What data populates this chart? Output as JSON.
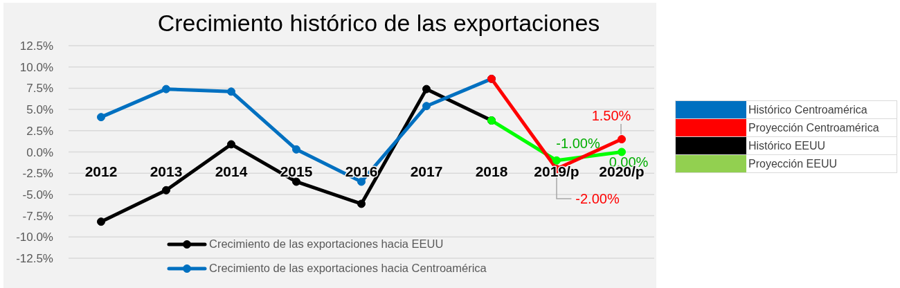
{
  "chart_data": [
    {
      "type": "line",
      "title": "Crecimiento histórico de las exportaciones",
      "categories": [
        "2012",
        "2013",
        "2014",
        "2015",
        "2016",
        "2017",
        "2018",
        "2019/p",
        "2020/p"
      ],
      "series": [
        {
          "name": "Crecimiento de las exportaciones hacia EEUU",
          "color": "#000000",
          "values": [
            -8.2,
            -4.5,
            0.9,
            -3.5,
            -6.1,
            7.4,
            3.7,
            null,
            null
          ]
        },
        {
          "name": "Crecimiento de las exportaciones hacia Centroamérica",
          "color": "#0070c0",
          "values": [
            4.1,
            7.4,
            7.1,
            0.3,
            -3.5,
            5.4,
            8.6,
            null,
            null
          ]
        },
        {
          "color": "#00ff00",
          "values": [
            null,
            null,
            null,
            null,
            null,
            null,
            3.7,
            -1.0,
            0.0
          ],
          "value_labels": [
            null,
            null,
            null,
            null,
            null,
            null,
            null,
            "-1.00%",
            "0.00%"
          ]
        },
        {
          "color": "#ff0000",
          "values": [
            null,
            null,
            null,
            null,
            null,
            null,
            8.6,
            -2.0,
            1.5
          ],
          "value_labels": [
            null,
            null,
            null,
            null,
            null,
            null,
            null,
            "-2.00%",
            "1.50%"
          ]
        }
      ],
      "ylim": [
        -12.5,
        12.5
      ],
      "yticks": [
        {
          "value": -12.5,
          "label": "-12.5%"
        },
        {
          "value": -10,
          "label": "-10.0%"
        },
        {
          "value": -7.5,
          "label": "-7.5%"
        },
        {
          "value": -5,
          "label": "-5.0%"
        },
        {
          "value": -2.5,
          "label": "-2.5%"
        },
        {
          "value": 0,
          "label": "0.0%"
        },
        {
          "value": 2.5,
          "label": "2.5%"
        },
        {
          "value": 5,
          "label": "5.0%"
        },
        {
          "value": 7.5,
          "label": "7.5%"
        },
        {
          "value": 10,
          "label": "10.0%"
        },
        {
          "value": 12.5,
          "label": "12.5%"
        }
      ],
      "grid": "y",
      "legend": "bottom",
      "marker": "circle",
      "line_style": "solid"
    },
    {
      "type": "other",
      "categories": [
        "Histórico Centroamérica",
        "Proyección Centroamérica",
        "Histórico EEUU",
        "Proyección EEUU"
      ],
      "colors": [
        "#0070c0",
        "#ff0000",
        "#000000",
        "#92d050"
      ]
    }
  ]
}
